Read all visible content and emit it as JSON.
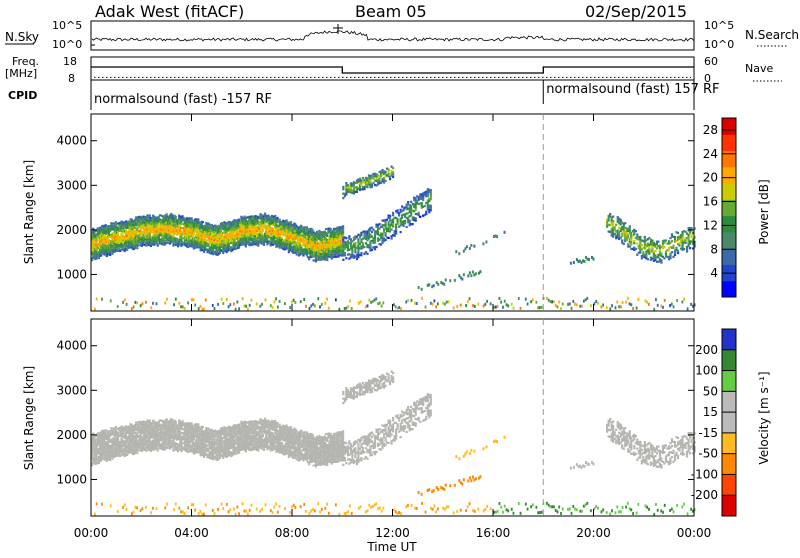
{
  "header": {
    "title": "Adak West (fitACF)",
    "beam": "Beam 05",
    "date": "02/Sep/2015"
  },
  "colors": {
    "power_scale": [
      "#0000ff",
      "#2244cc",
      "#3a6aa8",
      "#4a8a6a",
      "#2e8b3e",
      "#66aa33",
      "#cccc00",
      "#ffaa00",
      "#ff7700",
      "#ff3300",
      "#dd0000"
    ],
    "velocity_scale": [
      "#2233cc",
      "#338833",
      "#66cc44",
      "#bbbbbb",
      "#bbbbbb",
      "#ffbb22",
      "#ff8800",
      "#ff4400",
      "#dd0000"
    ],
    "ground_scatter": "#b5b5b0"
  },
  "chart_data": [
    {
      "type": "line",
      "name": "noise-panel",
      "left_label": "N.Sky",
      "right_label": "N.Search",
      "y_ticks_left": [
        "10^5",
        "10^0"
      ],
      "y_ticks_right": [
        "10^5",
        "10^0"
      ],
      "ylim_log10": [
        0,
        5
      ]
    },
    {
      "type": "line",
      "name": "freq-nave-panel",
      "left_label": "Freq.",
      "left_unit": "[MHz]",
      "right_label": "Nave",
      "y_ticks_left": [
        "18",
        "8"
      ],
      "y_ticks_right": [
        "60",
        "0"
      ],
      "freq_series": {
        "x_hours": [
          0,
          10,
          10,
          18,
          18,
          24
        ],
        "y_mhz": [
          14.5,
          14.5,
          11.5,
          11.5,
          14.5,
          14.5
        ]
      },
      "nave_level": 8
    },
    {
      "type": "table",
      "name": "cpid-panel",
      "label": "CPID",
      "segments": [
        {
          "start_hour": 0,
          "end_hour": 18,
          "text": "normalsound (fast) -157 RF"
        },
        {
          "start_hour": 18,
          "end_hour": 24,
          "text": "normalsound (fast) 157 RF"
        }
      ]
    },
    {
      "type": "heatmap",
      "name": "power-panel",
      "ylabel": "Slant Range [km]",
      "ylim": [
        180,
        4600
      ],
      "y_ticks": [
        1000,
        2000,
        3000,
        4000
      ],
      "colorbar_label": "Power [dB]",
      "colorbar_ticks": [
        4,
        8,
        12,
        16,
        20,
        24,
        28
      ],
      "colorbar_range": [
        0,
        30
      ]
    },
    {
      "type": "heatmap",
      "name": "velocity-panel",
      "ylabel": "Slant Range [km]",
      "ylim": [
        180,
        4600
      ],
      "y_ticks": [
        1000,
        2000,
        3000,
        4000
      ],
      "colorbar_label": "Velocity [m s⁻¹]",
      "colorbar_ticks": [
        "200",
        "100",
        "50",
        "15",
        "-15",
        "-50",
        "-100",
        "-200"
      ]
    }
  ],
  "x_axis": {
    "label": "Time UT",
    "xlim_hours": [
      0,
      24
    ],
    "ticks": [
      "00:00",
      "04:00",
      "08:00",
      "12:00",
      "16:00",
      "20:00",
      "00:00"
    ],
    "tick_hours": [
      0,
      4,
      8,
      12,
      16,
      20,
      24
    ],
    "mode_change_hour": 18
  },
  "scatter_features": {
    "main_band": {
      "hours": [
        0,
        10
      ],
      "center_km": [
        1650,
        1820,
        1950,
        2000,
        1900,
        1750,
        1950,
        2000,
        1800,
        1600,
        1750
      ],
      "power_db": 22
    },
    "band_after": {
      "hours": [
        10,
        13.5
      ],
      "center_km": [
        1550,
        1600,
        1750,
        1900,
        2100,
        2300,
        2500,
        2700
      ],
      "power_db": 14
    },
    "upper_arc": {
      "hours": [
        10,
        12
      ],
      "center_km": [
        2850,
        2950,
        3050,
        3150,
        3300
      ],
      "power_db": 18
    },
    "evening_band": {
      "hours": [
        20.5,
        24
      ],
      "center_km": [
        2200,
        1900,
        1600,
        1500,
        1700,
        1850
      ],
      "power_db": 18
    }
  }
}
